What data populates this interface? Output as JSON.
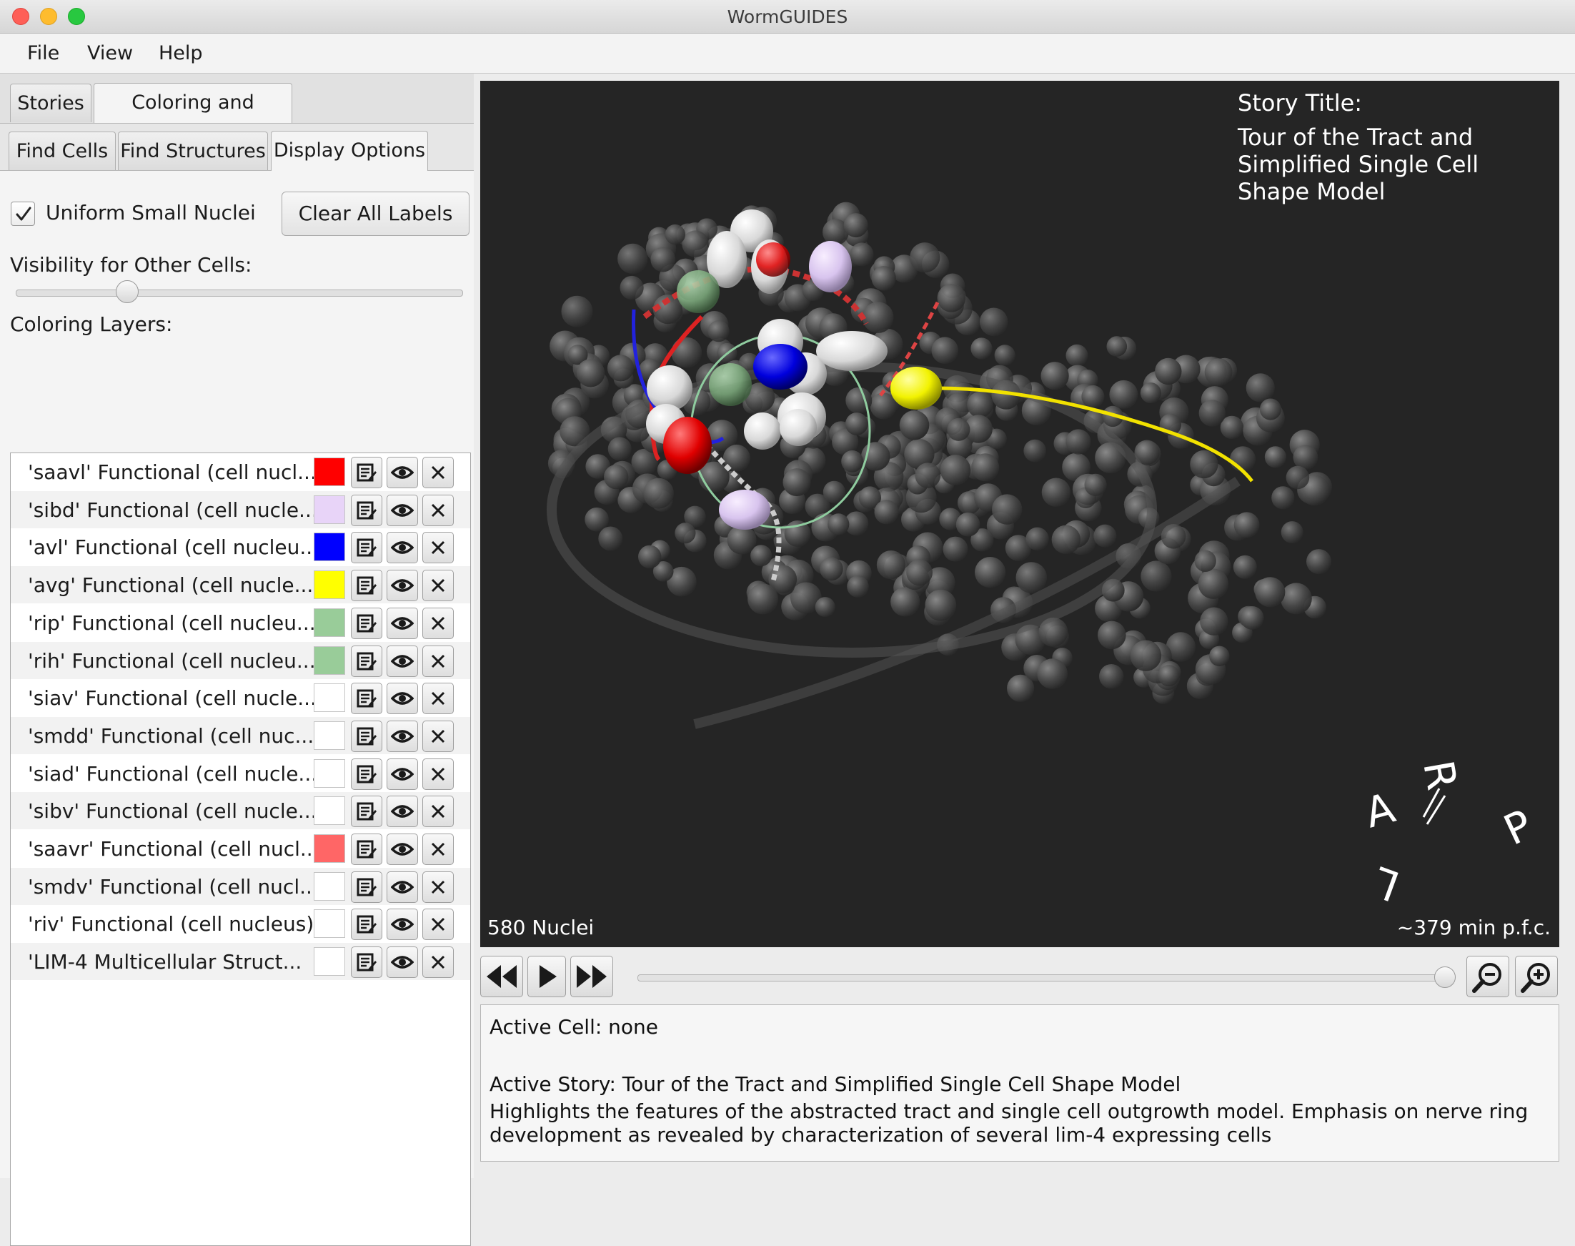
{
  "window": {
    "title": "WormGUIDES"
  },
  "menu": [
    "File",
    "View",
    "Help"
  ],
  "tabs_top": [
    {
      "label": "Stories",
      "active": false
    },
    {
      "label": "Coloring and Display",
      "active": true
    }
  ],
  "tabs_sub": [
    {
      "label": "Find Cells",
      "active": false
    },
    {
      "label": "Find Structures",
      "active": false
    },
    {
      "label": "Display Options",
      "active": true
    }
  ],
  "display": {
    "uniform_nuclei_label": "Uniform Small Nuclei",
    "uniform_nuclei_checked": true,
    "clear_labels_button": "Clear All Labels",
    "visibility_label": "Visibility for Other Cells:",
    "visibility_value": 0.25,
    "coloring_layers_label": "Coloring Layers:"
  },
  "layers": [
    {
      "name": "'saavl' Functional (cell nucl...",
      "color": "#ff0000"
    },
    {
      "name": "'sibd' Functional (cell nucle...",
      "color": "#e8d4f8"
    },
    {
      "name": "'avl' Functional (cell nucleu...",
      "color": "#0000ff"
    },
    {
      "name": "'avg' Functional (cell nucle...",
      "color": "#ffff00"
    },
    {
      "name": "'rip' Functional (cell nucleu...",
      "color": "#99cc99"
    },
    {
      "name": "'rih' Functional (cell nucleu...",
      "color": "#99cc99"
    },
    {
      "name": "'siav' Functional (cell nucle...",
      "color": "#ffffff"
    },
    {
      "name": "'smdd' Functional (cell nuc...",
      "color": "#ffffff"
    },
    {
      "name": "'siad' Functional (cell nucle...",
      "color": "#ffffff"
    },
    {
      "name": "'sibv' Functional (cell nucle...",
      "color": "#ffffff"
    },
    {
      "name": "'saavr' Functional (cell nucl...",
      "color": "#ff6666"
    },
    {
      "name": "'smdv' Functional (cell nucl...",
      "color": "#ffffff"
    },
    {
      "name": "'riv' Functional (cell nucleus)",
      "color": "#ffffff"
    },
    {
      "name": "'LIM-4 Multicellular Struct...",
      "color": "#ffffff"
    }
  ],
  "viewer": {
    "story_title_heading": "Story Title:",
    "story_title": "Tour of the Tract and Simplified Single Cell Shape Model",
    "nuclei_count": "580 Nuclei",
    "time": "~379 min p.f.c.",
    "orientation_letters": [
      "A",
      "R",
      "P",
      "L"
    ]
  },
  "playback": {
    "position": 1.0
  },
  "info": {
    "active_cell": "Active Cell: none",
    "active_story": "Active Story: Tour of the Tract and Simplified Single Cell Shape Model",
    "description": "Highlights the features of the abstracted tract and single cell outgrowth model. Emphasis on nerve ring development as revealed by characterization of several lim-4 expressing cells"
  }
}
